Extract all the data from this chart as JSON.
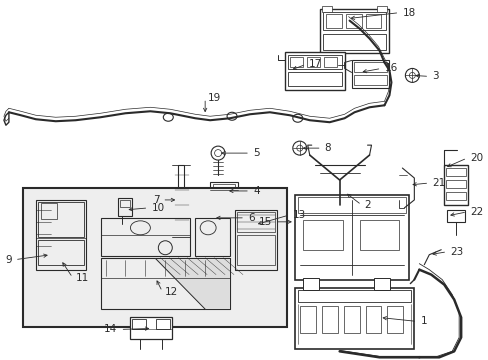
{
  "bg_color": "#ffffff",
  "line_color": "#2a2a2a",
  "fig_width": 4.89,
  "fig_height": 3.6,
  "dpi": 100,
  "label_fontsize": 7.5,
  "arrow_lw": 0.6,
  "comp_lw": 0.7
}
